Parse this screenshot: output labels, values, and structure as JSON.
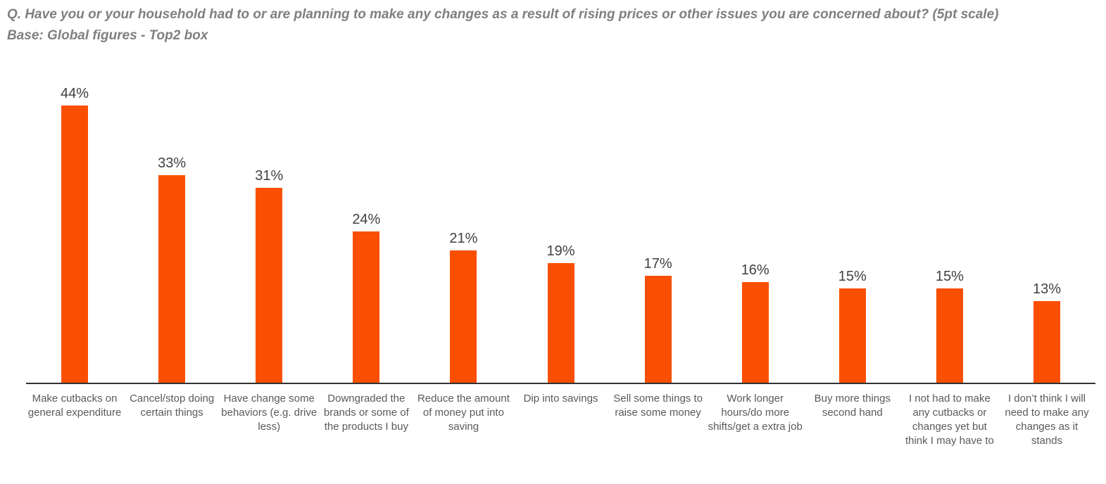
{
  "header": {
    "title": "Q. Have you or your household had to or are planning to make any changes as a result of rising prices or other issues you are concerned about? (5pt scale)",
    "subtitle": "Base: Global figures - Top2 box"
  },
  "chart_data": {
    "type": "bar",
    "title": "",
    "xlabel": "",
    "ylabel": "",
    "categories": [
      "Make cutbacks on general expenditure",
      "Cancel/stop doing certain things",
      "Have change some behaviors (e.g. drive less)",
      "Downgraded the brands or some of the products I buy",
      "Reduce the amount of money put into saving",
      "Dip into savings",
      "Sell some things to raise some money",
      "Work longer hours/do more shifts/get a extra job",
      "Buy more things second hand",
      "I not had to make any cutbacks or changes yet but think I may have to",
      "I don’t think I will need to make any changes as it stands"
    ],
    "values": [
      44,
      33,
      31,
      24,
      21,
      19,
      17,
      16,
      15,
      15,
      13
    ],
    "value_labels": [
      "44%",
      "33%",
      "31%",
      "24%",
      "21%",
      "19%",
      "17%",
      "16%",
      "15%",
      "15%",
      "13%"
    ],
    "ylim": [
      0,
      50
    ],
    "grid": false,
    "legend": "none"
  },
  "colors": {
    "bar": "#fa4f00",
    "title_text": "#7f7f7f",
    "value_text": "#404040",
    "category_text": "#595959",
    "axis_line": "#333333"
  }
}
